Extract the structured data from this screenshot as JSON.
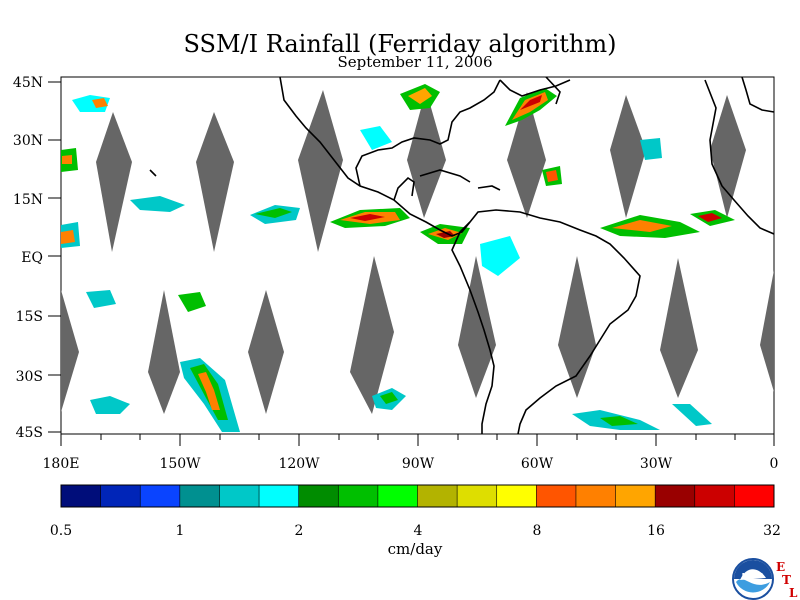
{
  "title": "SSM/I Rainfall (Ferriday algorithm)",
  "subtitle": "September 11, 2006",
  "units": "cm/day",
  "map": {
    "y_axis_labels": [
      "45N",
      "30N",
      "15N",
      "EQ",
      "15S",
      "30S",
      "45S"
    ],
    "x_axis_labels": [
      "180E",
      "150W",
      "120W",
      "90W",
      "60W",
      "30W",
      "0"
    ],
    "land_color": "#ffffff",
    "no_data_color": "#666666",
    "extent": {
      "lon": [
        -180,
        0
      ],
      "lat": [
        -45,
        45
      ]
    }
  },
  "colorbar": {
    "colors": [
      "#000d7a",
      "#0025b8",
      "#0a44ff",
      "#009090",
      "#00c8c8",
      "#00ffff",
      "#008c00",
      "#00bf00",
      "#00ff00",
      "#b3b300",
      "#dede00",
      "#ffff00",
      "#ff5500",
      "#ff8000",
      "#ffa500",
      "#990000",
      "#cc0000",
      "#ff0000"
    ],
    "tick_labels": [
      "0.5",
      "1",
      "2",
      "4",
      "8",
      "16",
      "32"
    ]
  },
  "logo": {
    "name": "NOAA",
    "etl": [
      "E",
      "T",
      "L"
    ]
  }
}
